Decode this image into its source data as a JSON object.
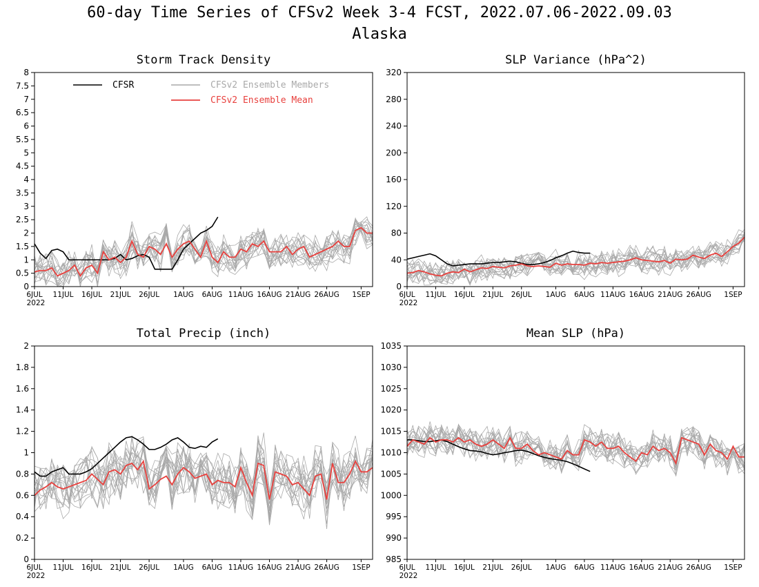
{
  "title_line1": "60-day Time Series of CFSv2 Week 3-4 FCST, 2022.07.06-2022.09.03",
  "title_line2": "Alaska",
  "colors": {
    "cfsr": "#000000",
    "members": "#a9a9a9",
    "mean": "#e8413e"
  },
  "legend": {
    "cfsr": "CFSR",
    "members": "CFSv2 Ensemble Members",
    "mean": "CFSv2 Ensemble Mean"
  },
  "x_ticks": [
    "6JUL",
    "11JUL",
    "16JUL",
    "21JUL",
    "26JUL",
    "1AUG",
    "6AUG",
    "11AUG",
    "16AUG",
    "21AUG",
    "26AUG",
    "1SEP"
  ],
  "x_tick_days": [
    0,
    5,
    10,
    15,
    20,
    26,
    31,
    36,
    41,
    46,
    51,
    57
  ],
  "x_year": "2022",
  "chart_data": [
    {
      "type": "line",
      "title": "Storm Track Density",
      "xlabel": "",
      "ylabel": "",
      "xlim_days": [
        0,
        59
      ],
      "ylim": [
        0,
        8
      ],
      "yticks": [
        "0",
        "0.5",
        "1",
        "1.5",
        "2",
        "2.5",
        "3",
        "3.5",
        "4",
        "4.5",
        "5",
        "5.5",
        "6",
        "6.5",
        "7",
        "7.5",
        "8"
      ],
      "legend_position": "top-left",
      "cfsr": [
        1.6,
        1.25,
        1.05,
        1.35,
        1.4,
        1.3,
        1.0,
        1.0,
        1.0,
        1.0,
        1.0,
        1.0,
        1.0,
        1.0,
        1.05,
        1.2,
        1.0,
        1.05,
        1.15,
        1.2,
        1.1,
        0.65,
        0.65,
        0.65,
        0.65,
        1.0,
        1.4,
        1.6,
        1.8,
        2.0,
        2.1,
        2.25,
        2.6
      ],
      "mean": [
        0.55,
        0.6,
        0.6,
        0.7,
        0.4,
        0.5,
        0.6,
        0.8,
        0.4,
        0.7,
        0.8,
        0.5,
        1.3,
        1.0,
        1.1,
        0.9,
        1.1,
        1.7,
        1.2,
        1.1,
        1.5,
        1.4,
        1.2,
        1.6,
        1.1,
        1.4,
        1.6,
        1.7,
        1.4,
        1.1,
        1.7,
        1.1,
        0.9,
        1.3,
        1.1,
        1.1,
        1.4,
        1.3,
        1.6,
        1.5,
        1.7,
        1.3,
        1.3,
        1.3,
        1.5,
        1.2,
        1.4,
        1.5,
        1.1,
        1.2,
        1.3,
        1.4,
        1.5,
        1.7,
        1.5,
        1.5,
        2.1,
        2.2,
        2.0,
        2.0
      ],
      "member_spread": 0.55,
      "member_count": 16
    },
    {
      "type": "line",
      "title": "SLP Variance (hPa^2)",
      "xlabel": "",
      "ylabel": "",
      "xlim_days": [
        0,
        59
      ],
      "ylim": [
        0,
        320
      ],
      "yticks": [
        "0",
        "40",
        "80",
        "120",
        "160",
        "200",
        "240",
        "280",
        "320"
      ],
      "cfsr": [
        41,
        43,
        45,
        47,
        49,
        46,
        40,
        34,
        31,
        32,
        33,
        34,
        34,
        34,
        35,
        36,
        36,
        37,
        38,
        37,
        35,
        33,
        33,
        34,
        36,
        39,
        43,
        46,
        50,
        53,
        51,
        50,
        50
      ],
      "mean": [
        20,
        21,
        24,
        22,
        19,
        17,
        16,
        20,
        22,
        21,
        26,
        22,
        25,
        28,
        27,
        30,
        29,
        28,
        31,
        32,
        34,
        31,
        30,
        31,
        30,
        29,
        35,
        32,
        34,
        33,
        33,
        32,
        35,
        34,
        36,
        35,
        36,
        37,
        38,
        40,
        43,
        40,
        39,
        38,
        37,
        39,
        35,
        41,
        40,
        41,
        47,
        44,
        42,
        47,
        50,
        45,
        52,
        60,
        65,
        74
      ],
      "member_spread": 16,
      "member_count": 16
    },
    {
      "type": "line",
      "title": "Total Precip (inch)",
      "xlabel": "",
      "ylabel": "",
      "xlim_days": [
        0,
        59
      ],
      "ylim": [
        0,
        2
      ],
      "yticks": [
        "0",
        "0.2",
        "0.4",
        "0.6",
        "0.8",
        "1",
        "1.2",
        "1.4",
        "1.6",
        "1.8",
        "2"
      ],
      "cfsr": [
        0.82,
        0.78,
        0.78,
        0.82,
        0.84,
        0.86,
        0.8,
        0.8,
        0.8,
        0.82,
        0.85,
        0.9,
        0.95,
        1.0,
        1.05,
        1.1,
        1.14,
        1.15,
        1.12,
        1.08,
        1.03,
        1.03,
        1.05,
        1.08,
        1.12,
        1.14,
        1.1,
        1.05,
        1.04,
        1.06,
        1.05,
        1.1,
        1.13
      ],
      "mean": [
        0.6,
        0.65,
        0.68,
        0.72,
        0.68,
        0.66,
        0.68,
        0.7,
        0.72,
        0.74,
        0.8,
        0.75,
        0.7,
        0.82,
        0.84,
        0.8,
        0.88,
        0.9,
        0.84,
        0.92,
        0.66,
        0.7,
        0.75,
        0.78,
        0.7,
        0.8,
        0.86,
        0.82,
        0.76,
        0.78,
        0.8,
        0.7,
        0.74,
        0.72,
        0.72,
        0.68,
        0.86,
        0.72,
        0.6,
        0.9,
        0.88,
        0.56,
        0.82,
        0.8,
        0.78,
        0.7,
        0.72,
        0.66,
        0.6,
        0.78,
        0.8,
        0.56,
        0.9,
        0.72,
        0.72,
        0.8,
        0.92,
        0.82,
        0.82,
        0.86
      ],
      "member_spread": 0.22,
      "member_count": 16
    },
    {
      "type": "line",
      "title": "Mean SLP (hPa)",
      "xlabel": "",
      "ylabel": "",
      "xlim_days": [
        0,
        59
      ],
      "ylim": [
        985,
        1035
      ],
      "yticks": [
        "985",
        "990",
        "995",
        "1000",
        "1005",
        "1010",
        "1015",
        "1020",
        "1025",
        "1030",
        "1035"
      ],
      "cfsr": [
        1013,
        1013,
        1012.8,
        1012.6,
        1012.6,
        1012.8,
        1013,
        1012.6,
        1012,
        1011.4,
        1010.9,
        1010.5,
        1010.4,
        1010.2,
        1009.8,
        1009.5,
        1009.7,
        1010,
        1010.2,
        1010.5,
        1010.6,
        1010.3,
        1009.8,
        1009.3,
        1008.9,
        1008.6,
        1008.4,
        1008.2,
        1007.9,
        1007.4,
        1006.8,
        1006.2,
        1005.6
      ],
      "mean": [
        1011.5,
        1013,
        1012.5,
        1012,
        1013.5,
        1012.5,
        1013,
        1013,
        1012.5,
        1013.5,
        1012.5,
        1013,
        1012,
        1011.5,
        1012,
        1013,
        1012,
        1011,
        1013.5,
        1011,
        1011,
        1012,
        1010.5,
        1009.5,
        1010,
        1009.5,
        1009,
        1008.5,
        1010.5,
        1009.5,
        1009.5,
        1013,
        1012.5,
        1011.5,
        1012.5,
        1011,
        1011,
        1011.5,
        1010,
        1009,
        1008,
        1010,
        1009.5,
        1011.5,
        1010.5,
        1011,
        1010,
        1007.5,
        1013.5,
        1013,
        1012.5,
        1012,
        1009.5,
        1012,
        1010.5,
        1010,
        1008.5,
        1011.5,
        1009,
        1009
      ],
      "member_spread": 3.2,
      "member_count": 16
    }
  ]
}
